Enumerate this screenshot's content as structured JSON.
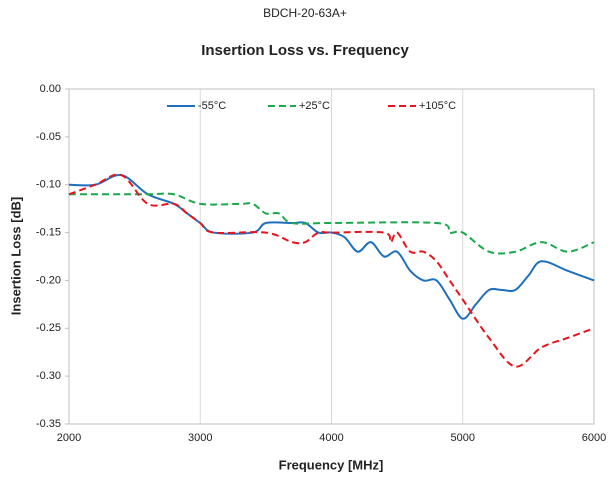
{
  "chart_data": {
    "type": "line",
    "subtitle": "BDCH-20-63A+",
    "title": "Insertion Loss vs. Frequency",
    "x_label": "Frequency [MHz]",
    "y_label": "Insertion Loss [dB]",
    "xlim": [
      2000,
      6000
    ],
    "xticks": [
      2000,
      3000,
      4000,
      5000,
      6000
    ],
    "ylim": [
      -0.35,
      0
    ],
    "yticks": [
      {
        "value": 0,
        "label": "0.00"
      },
      -0.05,
      {
        "value": -0.1,
        "label": "-0.10"
      },
      -0.15,
      {
        "value": -0.2,
        "label": "-0.20"
      },
      -0.25,
      {
        "value": -0.3,
        "label": "-0.30"
      },
      -0.35
    ],
    "grid": "x",
    "legend": "top",
    "series": [
      {
        "name": "-55°C",
        "color": "#1f6fbf",
        "dash": "solid",
        "x": [
          2000,
          2200,
          2400,
          2600,
          2800,
          2900,
          3000,
          3100,
          3400,
          3500,
          3700,
          3800,
          3900,
          4000,
          4100,
          4200,
          4300,
          4400,
          4500,
          4600,
          4700,
          4800,
          4900,
          5000,
          5100,
          5200,
          5300,
          5400,
          5500,
          5600,
          5800,
          6000
        ],
        "values": [
          -0.1,
          -0.1,
          -0.09,
          -0.11,
          -0.12,
          -0.13,
          -0.14,
          -0.15,
          -0.15,
          -0.14,
          -0.14,
          -0.14,
          -0.15,
          -0.15,
          -0.155,
          -0.17,
          -0.16,
          -0.175,
          -0.17,
          -0.19,
          -0.2,
          -0.2,
          -0.22,
          -0.24,
          -0.225,
          -0.21,
          -0.21,
          -0.21,
          -0.195,
          -0.18,
          -0.19,
          -0.2
        ]
      },
      {
        "name": "+25°C",
        "color": "#1aa84a",
        "dash": "dashed",
        "x": [
          2000,
          2400,
          2600,
          2800,
          3000,
          3300,
          3400,
          3500,
          3600,
          3700,
          4000,
          4800,
          4900,
          5000,
          5200,
          5400,
          5600,
          5800,
          6000
        ],
        "values": [
          -0.11,
          -0.11,
          -0.11,
          -0.11,
          -0.12,
          -0.12,
          -0.12,
          -0.13,
          -0.13,
          -0.14,
          -0.14,
          -0.14,
          -0.15,
          -0.15,
          -0.17,
          -0.17,
          -0.16,
          -0.17,
          -0.16
        ]
      },
      {
        "name": "+105°C",
        "color": "#e8141c",
        "dash": "dashed",
        "x": [
          2000,
          2200,
          2400,
          2600,
          2800,
          2900,
          3000,
          3100,
          3500,
          3700,
          3800,
          3900,
          4000,
          4400,
          4450,
          4500,
          4600,
          4700,
          4800,
          4900,
          5000,
          5200,
          5400,
          5600,
          5800,
          6000
        ],
        "values": [
          -0.11,
          -0.1,
          -0.09,
          -0.12,
          -0.12,
          -0.13,
          -0.14,
          -0.15,
          -0.15,
          -0.16,
          -0.16,
          -0.15,
          -0.15,
          -0.15,
          -0.16,
          -0.15,
          -0.17,
          -0.17,
          -0.18,
          -0.2,
          -0.22,
          -0.26,
          -0.29,
          -0.27,
          -0.26,
          -0.25
        ]
      }
    ]
  }
}
